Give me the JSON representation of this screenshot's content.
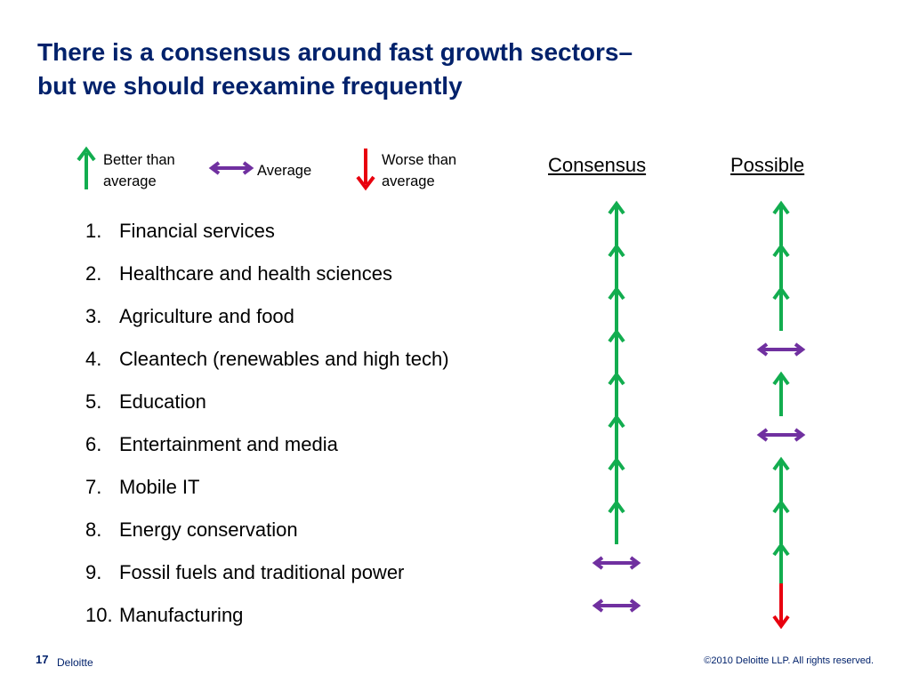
{
  "slide": {
    "title_line1": "There is a consensus around fast growth sectors–",
    "title_line2": "but we should reexamine frequently",
    "legend": {
      "better_line1": "Better than",
      "better_line2": "average",
      "average": "Average",
      "worse_line1": "Worse than",
      "worse_line2": "average"
    },
    "columns": {
      "consensus": "Consensus",
      "possible": "Possible"
    },
    "sectors": [
      {
        "num": "1.",
        "label": "Financial services"
      },
      {
        "num": "2.",
        "label": "Healthcare and health sciences"
      },
      {
        "num": "3.",
        "label": "Agriculture and food"
      },
      {
        "num": "4.",
        "label": "Cleantech (renewables and high tech)"
      },
      {
        "num": "5.",
        "label": "Education"
      },
      {
        "num": "6.",
        "label": "Entertainment and media"
      },
      {
        "num": "7.",
        "label": "Mobile IT"
      },
      {
        "num": "8.",
        "label": "Energy conservation"
      },
      {
        "num": "9.",
        "label": "Fossil fuels and traditional power"
      },
      {
        "num": "10.",
        "label": "Manufacturing"
      }
    ],
    "consensus_ratings": [
      "better",
      "better",
      "better",
      "better",
      "better",
      "better",
      "better",
      "better",
      "average",
      "average"
    ],
    "possible_ratings": [
      "better",
      "better",
      "better",
      "average",
      "better",
      "average",
      "better",
      "better",
      "better",
      "worse"
    ],
    "colors": {
      "title": "#00216b",
      "better": "#12ad4f",
      "average": "#7030a0",
      "worse": "#e8000e"
    }
  },
  "footer": {
    "page": "17",
    "brand": "Deloitte",
    "copyright": "©2010 Deloitte LLP. All rights reserved."
  }
}
